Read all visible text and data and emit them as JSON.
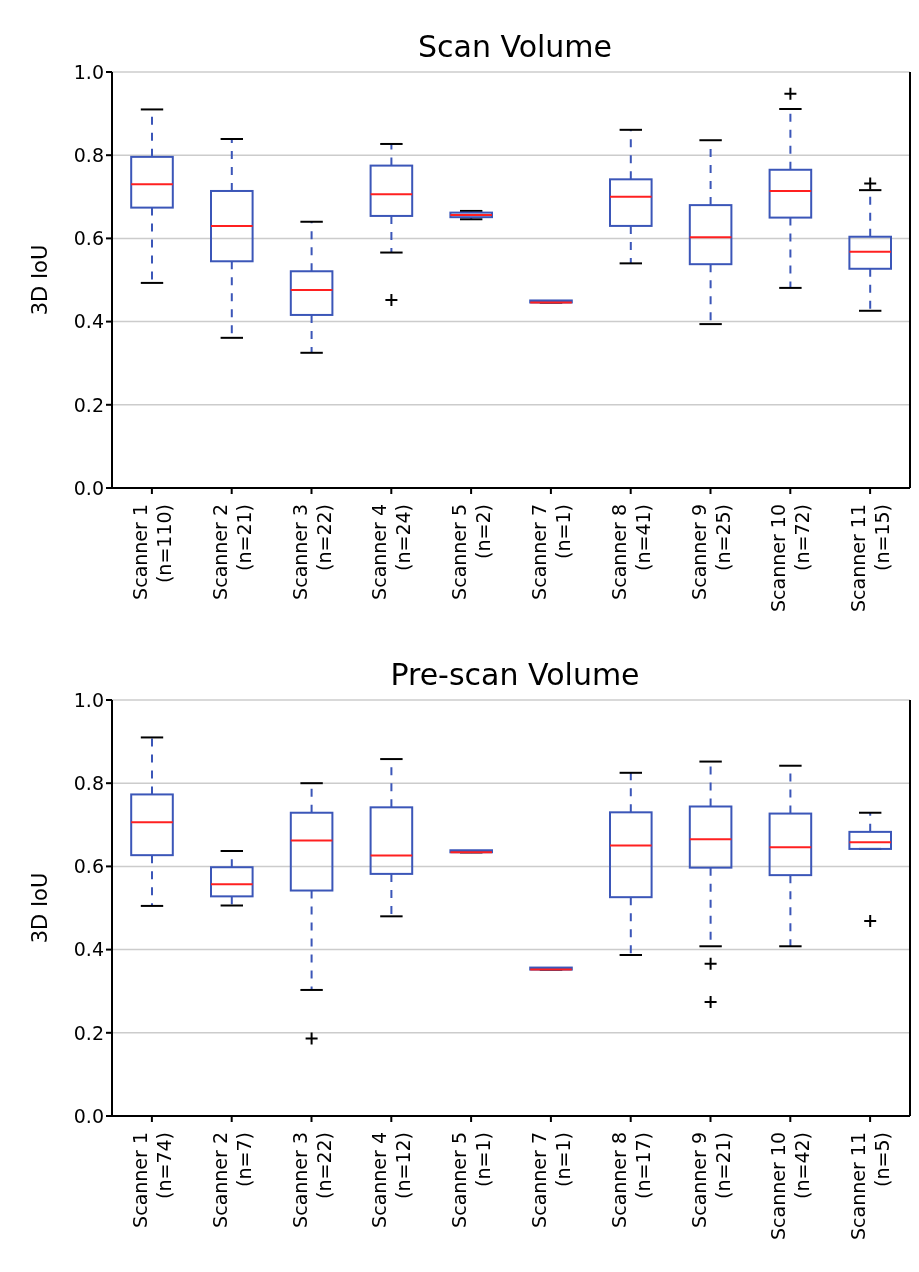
{
  "chart_data": [
    {
      "type": "box",
      "title": "Scan Volume",
      "ylabel": "3D IoU",
      "categories": [
        "Scanner 1\n(n=110)",
        "Scanner 2\n(n=21)",
        "Scanner 3\n(n=22)",
        "Scanner 4\n(n=24)",
        "Scanner 5\n(n=2)",
        "Scanner 7\n(n=1)",
        "Scanner 8\n(n=41)",
        "Scanner 9\n(n=25)",
        "Scanner 10\n(n=72)",
        "Scanner 11\n(n=15)"
      ],
      "color": "#3b56b8",
      "ylim": [
        0,
        1
      ],
      "yticks": [
        {
          "value": 0,
          "label": "0.0"
        },
        {
          "value": 0.2,
          "label": "0.2"
        },
        {
          "value": 0.4,
          "label": "0.4"
        },
        {
          "value": 0.6,
          "label": "0.6"
        },
        {
          "value": 0.8,
          "label": "0.8"
        },
        {
          "value": 1,
          "label": "1.0"
        }
      ],
      "grid": "y",
      "marker": "cross",
      "line_style": "dashed",
      "boxes": [
        {
          "low": 0.493,
          "q1": 0.674,
          "median": 0.73,
          "q3": 0.796,
          "high": 0.91
        },
        {
          "low": 0.361,
          "q1": 0.545,
          "median": 0.63,
          "q3": 0.714,
          "high": 0.839
        },
        {
          "low": 0.325,
          "q1": 0.416,
          "median": 0.476,
          "q3": 0.521,
          "high": 0.64
        },
        {
          "low": 0.566,
          "q1": 0.654,
          "median": 0.706,
          "q3": 0.775,
          "high": 0.827,
          "outliers": [
            0.452
          ]
        },
        {
          "low": 0.646,
          "q1": 0.651,
          "median": 0.656,
          "q3": 0.662,
          "high": 0.666
        },
        {
          "low": 0.446,
          "q1": 0.446,
          "median": 0.446,
          "q3": 0.446,
          "high": 0.446
        },
        {
          "low": 0.54,
          "q1": 0.63,
          "median": 0.7,
          "q3": 0.742,
          "high": 0.861
        },
        {
          "low": 0.394,
          "q1": 0.538,
          "median": 0.603,
          "q3": 0.68,
          "high": 0.836
        },
        {
          "low": 0.481,
          "q1": 0.65,
          "median": 0.714,
          "q3": 0.765,
          "high": 0.911,
          "outliers": [
            0.948
          ]
        },
        {
          "low": 0.426,
          "q1": 0.527,
          "median": 0.568,
          "q3": 0.604,
          "high": 0.716,
          "outliers": [
            0.732
          ]
        }
      ]
    },
    {
      "type": "box",
      "title": "Pre-scan Volume",
      "ylabel": "3D IoU",
      "categories": [
        "Scanner 1\n(n=74)",
        "Scanner 2\n(n=7)",
        "Scanner 3\n(n=22)",
        "Scanner 4\n(n=12)",
        "Scanner 5\n(n=1)",
        "Scanner 7\n(n=1)",
        "Scanner 8\n(n=17)",
        "Scanner 9\n(n=21)",
        "Scanner 10\n(n=42)",
        "Scanner 11\n(n=5)"
      ],
      "color": "#3b56b8",
      "ylim": [
        0,
        1
      ],
      "yticks": [
        {
          "value": 0,
          "label": "0.0"
        },
        {
          "value": 0.2,
          "label": "0.2"
        },
        {
          "value": 0.4,
          "label": "0.4"
        },
        {
          "value": 0.6,
          "label": "0.6"
        },
        {
          "value": 0.8,
          "label": "0.8"
        },
        {
          "value": 1,
          "label": "1.0"
        }
      ],
      "grid": "y",
      "marker": "cross",
      "line_style": "dashed",
      "boxes": [
        {
          "low": 0.505,
          "q1": 0.627,
          "median": 0.706,
          "q3": 0.773,
          "high": 0.91
        },
        {
          "low": 0.506,
          "q1": 0.528,
          "median": 0.557,
          "q3": 0.598,
          "high": 0.637
        },
        {
          "low": 0.303,
          "q1": 0.542,
          "median": 0.662,
          "q3": 0.729,
          "high": 0.8,
          "outliers": [
            0.186
          ]
        },
        {
          "low": 0.48,
          "q1": 0.582,
          "median": 0.626,
          "q3": 0.742,
          "high": 0.858
        },
        {
          "low": 0.634,
          "q1": 0.634,
          "median": 0.634,
          "q3": 0.634,
          "high": 0.634
        },
        {
          "low": 0.352,
          "q1": 0.352,
          "median": 0.352,
          "q3": 0.352,
          "high": 0.352
        },
        {
          "low": 0.387,
          "q1": 0.526,
          "median": 0.65,
          "q3": 0.73,
          "high": 0.825
        },
        {
          "low": 0.408,
          "q1": 0.597,
          "median": 0.665,
          "q3": 0.744,
          "high": 0.852,
          "outliers": [
            0.366,
            0.274
          ]
        },
        {
          "low": 0.408,
          "q1": 0.579,
          "median": 0.646,
          "q3": 0.727,
          "high": 0.842
        },
        {
          "low": 0.642,
          "q1": 0.642,
          "median": 0.658,
          "q3": 0.683,
          "high": 0.729,
          "outliers": [
            0.469
          ]
        }
      ]
    }
  ]
}
